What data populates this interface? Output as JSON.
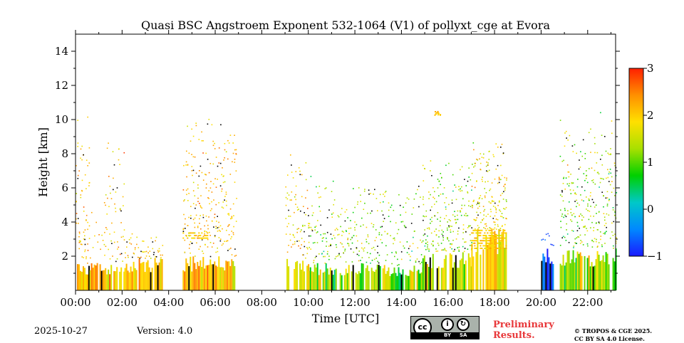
{
  "chart_data": {
    "type": "heatmap",
    "title": "Quasi BSC Angstroem Exponent 532-1064 (V1) of pollyxt_cge at Evora",
    "xlabel": "Time [UTC]",
    "ylabel": "Height [km]",
    "x_ticks": [
      "00:00",
      "02:00",
      "04:00",
      "06:00",
      "08:00",
      "10:00",
      "12:00",
      "14:00",
      "16:00",
      "18:00",
      "20:00",
      "22:00"
    ],
    "x_range_hours": [
      0,
      23.2
    ],
    "y_ticks": [
      2,
      4,
      6,
      8,
      10,
      12,
      14
    ],
    "y_range_km": [
      0,
      15
    ],
    "colorbar": {
      "range": [
        -1,
        3
      ],
      "ticks": [
        -1,
        0,
        1,
        2,
        3
      ],
      "tick_labels": [
        "−1",
        "0",
        "1",
        "2",
        "3"
      ],
      "colormap": [
        "#1a1aff",
        "#0088ff",
        "#00c8c8",
        "#00d000",
        "#a8e000",
        "#ffe000",
        "#ff9000",
        "#ff2000"
      ]
    },
    "segments": [
      {
        "t0": 0.0,
        "t1": 0.6,
        "low_top": 1.6,
        "sparse_top": 10.5,
        "density": 0.35,
        "mean": 2.1,
        "spread": 0.5
      },
      {
        "t0": 0.6,
        "t1": 1.2,
        "low_top": 1.6,
        "sparse_top": 5.0,
        "density": 0.15,
        "mean": 2.1,
        "spread": 0.5
      },
      {
        "t0": 1.2,
        "t1": 2.1,
        "low_top": 1.6,
        "sparse_top": 9.3,
        "density": 0.25,
        "mean": 2.0,
        "spread": 0.6
      },
      {
        "t0": 2.1,
        "t1": 3.7,
        "low_top": 1.9,
        "sparse_top": 3.4,
        "density": 0.55,
        "mean": 2.0,
        "spread": 0.5
      },
      {
        "t0": 4.6,
        "t1": 6.9,
        "low_top": 2.0,
        "sparse_top": 10.5,
        "density": 0.4,
        "mean": 2.1,
        "spread": 0.5
      },
      {
        "t0": 9.0,
        "t1": 10.0,
        "low_top": 1.9,
        "sparse_top": 8.0,
        "density": 0.35,
        "mean": 1.9,
        "spread": 0.6
      },
      {
        "t0": 10.0,
        "t1": 13.3,
        "low_top": 1.6,
        "sparse_top": 7.0,
        "density": 0.35,
        "mean": 1.3,
        "spread": 0.8
      },
      {
        "t0": 13.3,
        "t1": 14.9,
        "low_top": 1.5,
        "sparse_top": 6.5,
        "density": 0.25,
        "mean": 1.2,
        "spread": 0.8
      },
      {
        "t0": 14.9,
        "t1": 17.0,
        "low_top": 2.3,
        "sparse_top": 8.0,
        "density": 0.45,
        "mean": 1.3,
        "spread": 0.8
      },
      {
        "t0": 17.0,
        "t1": 18.5,
        "low_top": 3.6,
        "sparse_top": 9.0,
        "density": 0.6,
        "mean": 1.8,
        "spread": 0.6
      },
      {
        "t0": 20.0,
        "t1": 20.5,
        "low_top": 2.5,
        "sparse_top": 3.5,
        "density": 0.4,
        "mean": -0.8,
        "spread": 0.4
      },
      {
        "t0": 20.8,
        "t1": 23.2,
        "low_top": 2.5,
        "sparse_top": 10.5,
        "density": 0.4,
        "mean": 1.3,
        "spread": 0.8
      }
    ],
    "features": [
      {
        "name": "cloud-patch",
        "t": 15.5,
        "h": 10.4,
        "value": 2.2
      },
      {
        "name": "aerosol-layer",
        "t0": 17.0,
        "t1": 18.5,
        "h0": 2.5,
        "h1": 3.6,
        "value": 2.0
      },
      {
        "name": "aerosol-layer",
        "t0": 4.6,
        "t1": 5.7,
        "h0": 3.1,
        "h1": 3.5,
        "value": 2.0
      }
    ]
  },
  "footer": {
    "date": "2025-10-27",
    "version": "Version: 4.0",
    "preliminary_line1": "Preliminary",
    "preliminary_line2": "Results.",
    "copyright_line1": "© TROPOS & CGE 2025.",
    "copyright_line2": "CC BY SA 4.0 License.",
    "license_by": "BY",
    "license_sa": "SA",
    "license_cc": "cc"
  }
}
